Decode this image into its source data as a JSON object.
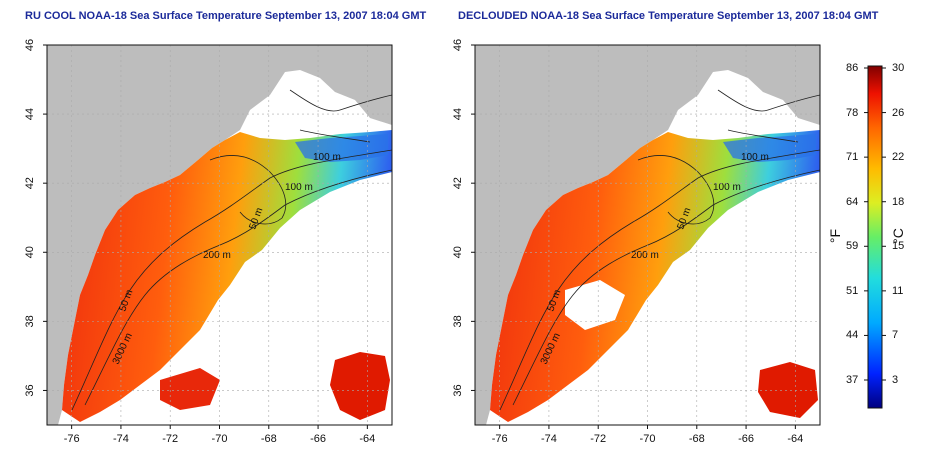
{
  "maps": [
    {
      "title": "RU COOL NOAA-18 Sea Surface Temperature September 13, 2007 18:04 GMT",
      "contours": [
        {
          "label": "100 m"
        },
        {
          "label": "100 m"
        },
        {
          "label": "50 m"
        },
        {
          "label": "200 m"
        },
        {
          "label": "50 m"
        },
        {
          "label": "3000 m"
        }
      ]
    },
    {
      "title": "DECLOUDED NOAA-18 Sea Surface Temperature September 13, 2007 18:04 GMT",
      "contours": [
        {
          "label": "100 m"
        },
        {
          "label": "100 m"
        },
        {
          "label": "50 m"
        },
        {
          "label": "200 m"
        },
        {
          "label": "50 m"
        },
        {
          "label": "3000 m"
        }
      ]
    }
  ],
  "axes": {
    "x_ticks": [
      "-76",
      "-74",
      "-72",
      "-70",
      "-68",
      "-66",
      "-64"
    ],
    "y_ticks": [
      "36",
      "38",
      "40",
      "42",
      "44",
      "46"
    ]
  },
  "colorbar": {
    "fahrenheit_ticks": [
      "86",
      "78",
      "71",
      "64",
      "59",
      "51",
      "44",
      "37"
    ],
    "celsius_ticks": [
      "30",
      "26",
      "22",
      "18",
      "15",
      "11",
      "7",
      "3"
    ],
    "fahrenheit_unit": "°F",
    "celsius_unit": "°C",
    "colors": [
      "#000080",
      "#0022ff",
      "#00aaff",
      "#22dddd",
      "#66ee66",
      "#ddee22",
      "#ffbb00",
      "#ff6600",
      "#ee1100",
      "#800000"
    ]
  },
  "colors": {
    "land": "#bdbdbd",
    "title": "#1b2a9a",
    "grid": "#aaaaaa"
  }
}
